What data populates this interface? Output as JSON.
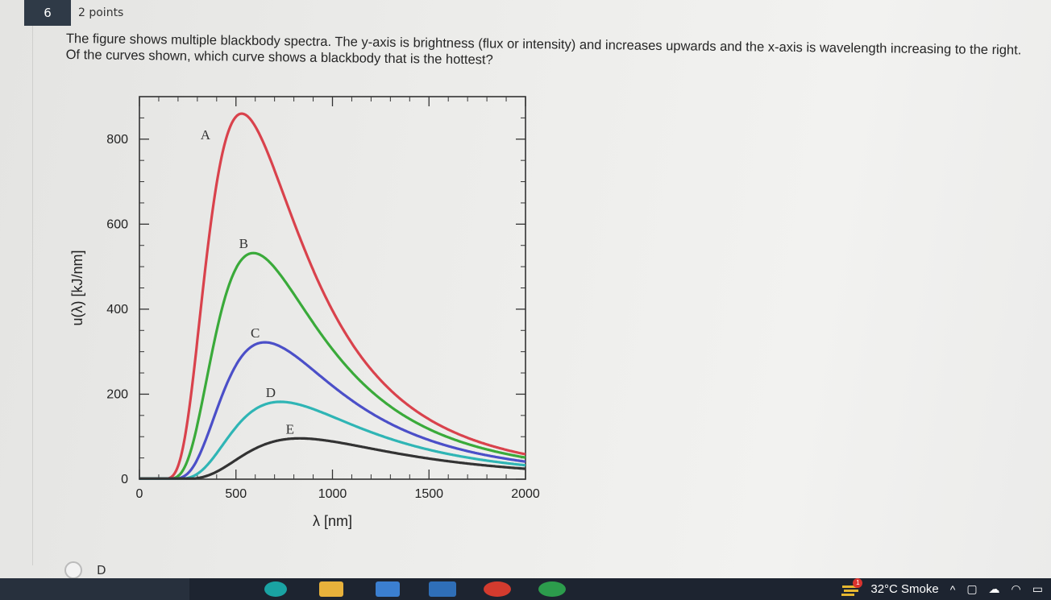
{
  "question": {
    "number": "6",
    "points": "2 points",
    "text_line1": "The figure shows multiple blackbody spectra. The y-axis is brightness (flux or intensity) and increases upwards and the x-axis is wavelength increasing to the right.",
    "text_line2": "Of the curves shown, which curve shows a blackbody that is the hottest?"
  },
  "option_visible": {
    "label": "D"
  },
  "chart_data": {
    "type": "line",
    "xlabel": "λ [nm]",
    "ylabel": "u(λ) [kJ/nm]",
    "xlim": [
      0,
      2000
    ],
    "ylim": [
      0,
      900
    ],
    "x_ticks": [
      "0",
      "500",
      "1000",
      "1500",
      "2000"
    ],
    "y_ticks": [
      "0",
      "200",
      "400",
      "600",
      "800"
    ],
    "series": [
      {
        "name": "A",
        "color": "#d9424c",
        "peak_x": 530,
        "peak_y": 860
      },
      {
        "name": "B",
        "color": "#3aaa3a",
        "peak_x": 590,
        "peak_y": 532
      },
      {
        "name": "C",
        "color": "#4b4fc8",
        "peak_x": 650,
        "peak_y": 322
      },
      {
        "name": "D",
        "color": "#2fb5b5",
        "peak_x": 730,
        "peak_y": 182
      },
      {
        "name": "E",
        "color": "#333333",
        "peak_x": 830,
        "peak_y": 96
      }
    ]
  },
  "taskbar": {
    "weather": "32°C  Smoke",
    "alert_count": "1"
  }
}
